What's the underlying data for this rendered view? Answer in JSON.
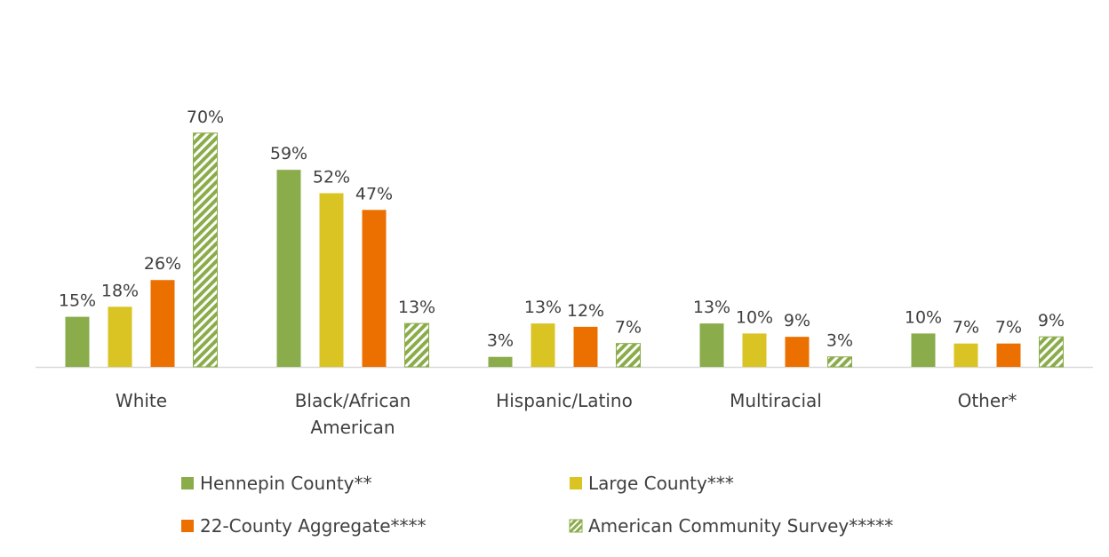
{
  "chart_data": {
    "type": "bar",
    "categories": [
      "White",
      "Black/African American",
      "Hispanic/Latino",
      "Multiracial",
      "Other*"
    ],
    "series": [
      {
        "name": "Hennepin County**",
        "color": "#8aac4a",
        "values": [
          15,
          59,
          3,
          13,
          10
        ],
        "value_labels": [
          "15%",
          "59%",
          "3%",
          "13%",
          "10%"
        ]
      },
      {
        "name": "Large County***",
        "color": "#d9c423",
        "values": [
          18,
          52,
          13,
          10,
          7
        ],
        "value_labels": [
          "18%",
          "52%",
          "13%",
          "10%",
          "7%"
        ]
      },
      {
        "name": "22-County Aggregate****",
        "color": "#ec7000",
        "values": [
          26,
          47,
          12,
          9,
          7
        ],
        "value_labels": [
          "26%",
          "47%",
          "12%",
          "9%",
          "7%"
        ]
      },
      {
        "name": "American Community Survey*****",
        "color": "#8aac4a",
        "hatch": true,
        "values": [
          70,
          13,
          7,
          3,
          9
        ],
        "value_labels": [
          "70%",
          "13%",
          "7%",
          "3%",
          "9%"
        ]
      }
    ]
  }
}
